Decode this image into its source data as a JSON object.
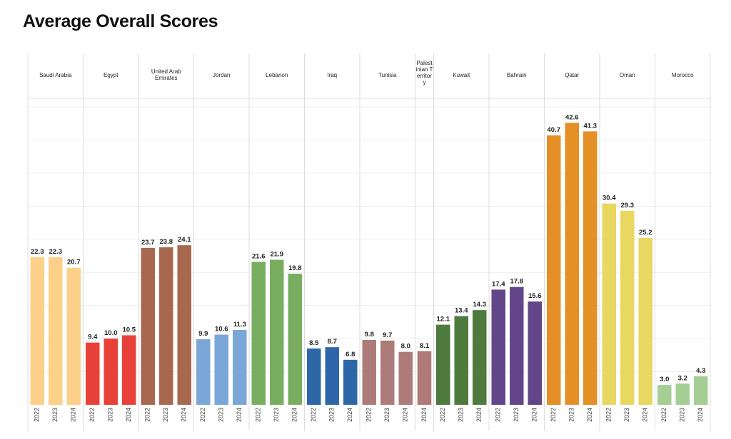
{
  "chart_data": {
    "type": "bar",
    "title": "Average Overall Scores",
    "years": [
      "2022",
      "2023",
      "2024"
    ],
    "ylim": [
      0,
      45
    ],
    "grid": true,
    "groups": [
      {
        "name": "Saudi Arabia",
        "label_lines": [
          "Saudi Arabia"
        ],
        "color": "#FDD08A",
        "years": [
          "2022",
          "2023",
          "2024"
        ],
        "values": [
          22.3,
          22.3,
          20.7
        ]
      },
      {
        "name": "Egypt",
        "label_lines": [
          "Egypt"
        ],
        "color": "#E8413A",
        "years": [
          "2022",
          "2023",
          "2024"
        ],
        "values": [
          9.4,
          10.0,
          10.5
        ]
      },
      {
        "name": "United Arab Emirates",
        "label_lines": [
          "United Arab",
          "Emirates"
        ],
        "color": "#A8684F",
        "years": [
          "2022",
          "2023",
          "2024"
        ],
        "values": [
          23.7,
          23.8,
          24.1
        ]
      },
      {
        "name": "Jordan",
        "label_lines": [
          "Jordan"
        ],
        "color": "#7AA6D8",
        "years": [
          "2022",
          "2023",
          "2024"
        ],
        "values": [
          9.9,
          10.6,
          11.3
        ]
      },
      {
        "name": "Lebanon",
        "label_lines": [
          "Lebanon"
        ],
        "color": "#79AE61",
        "years": [
          "2022",
          "2023",
          "2024"
        ],
        "values": [
          21.6,
          21.9,
          19.8
        ]
      },
      {
        "name": "Iraq",
        "label_lines": [
          "Iraq"
        ],
        "color": "#2E67A8",
        "years": [
          "2022",
          "2023",
          "2024"
        ],
        "values": [
          8.5,
          8.7,
          6.8
        ]
      },
      {
        "name": "Tunisia",
        "label_lines": [
          "Tunisia"
        ],
        "color": "#AD7C79",
        "years": [
          "2022",
          "2023",
          "2024"
        ],
        "values": [
          9.8,
          9.7,
          8.0
        ]
      },
      {
        "name": "Palestinian Territory",
        "label_lines": [
          "Palest",
          "inian T",
          "erritor",
          "y"
        ],
        "color": "#B07A78",
        "years": [
          "2024"
        ],
        "values": [
          8.1
        ]
      },
      {
        "name": "Kuwait",
        "label_lines": [
          "Kuwait"
        ],
        "color": "#4E7A3E",
        "years": [
          "2022",
          "2023",
          "2024"
        ],
        "values": [
          12.1,
          13.4,
          14.3
        ]
      },
      {
        "name": "Bahrain",
        "label_lines": [
          "Bahrain"
        ],
        "color": "#63468A",
        "years": [
          "2022",
          "2023",
          "2024"
        ],
        "values": [
          17.4,
          17.8,
          15.6
        ]
      },
      {
        "name": "Qatar",
        "label_lines": [
          "Qatar"
        ],
        "color": "#E58F27",
        "years": [
          "2022",
          "2023",
          "2024"
        ],
        "values": [
          40.7,
          42.6,
          41.3
        ]
      },
      {
        "name": "Oman",
        "label_lines": [
          "Oman"
        ],
        "color": "#E8D760",
        "years": [
          "2022",
          "2023",
          "2024"
        ],
        "values": [
          30.4,
          29.3,
          25.2
        ]
      },
      {
        "name": "Morocco",
        "label_lines": [
          "Morocco"
        ],
        "color": "#A5CE95",
        "years": [
          "2022",
          "2023",
          "2024"
        ],
        "values": [
          3.0,
          3.2,
          4.3
        ]
      }
    ]
  }
}
